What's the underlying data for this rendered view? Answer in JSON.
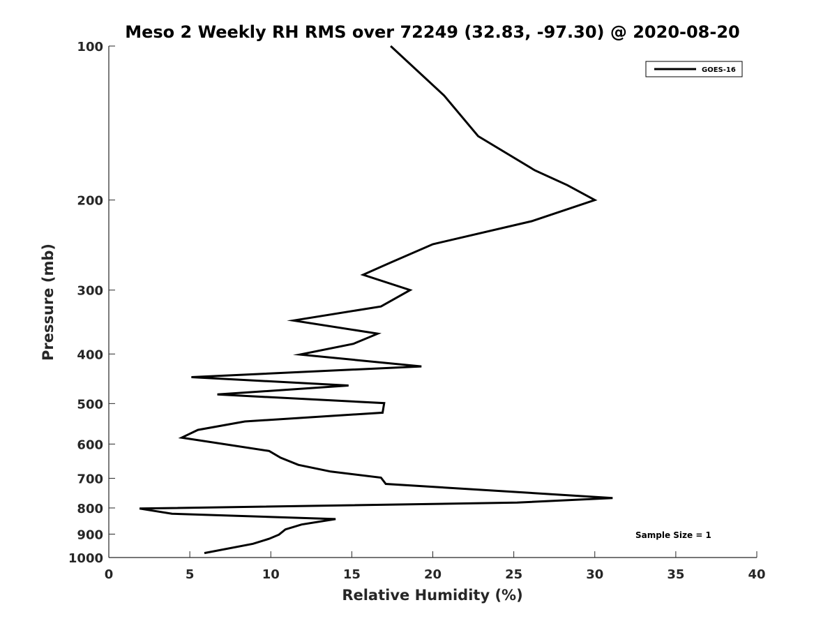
{
  "chart_data": {
    "type": "line",
    "title": "Meso 2 Weekly RH RMS over 72249 (32.83, -97.30) @ 2020-08-20",
    "xlabel": "Relative Humidity (%)",
    "ylabel": "Pressure (mb)",
    "xlim": [
      0,
      40
    ],
    "ylim": [
      100,
      1000
    ],
    "y_scale": "log",
    "y_reversed": true,
    "grid": false,
    "legend_position": "top-right",
    "x_ticks": [
      "0",
      "5",
      "10",
      "15",
      "20",
      "25",
      "30",
      "35",
      "40"
    ],
    "y_ticks": [
      "100",
      "200",
      "300",
      "400",
      "500",
      "600",
      "700",
      "800",
      "900",
      "1000"
    ],
    "annotation": "Sample Size = 1",
    "colors": {
      "line": "#000000",
      "axis": "#262626"
    },
    "series": [
      {
        "name": "GOES-16",
        "points": [
          [
            17.4,
            100
          ],
          [
            20.7,
            125
          ],
          [
            22.8,
            150
          ],
          [
            26.3,
            175
          ],
          [
            28.3,
            187
          ],
          [
            30.0,
            200
          ],
          [
            26.1,
            220
          ],
          [
            20.0,
            244
          ],
          [
            17.4,
            265
          ],
          [
            15.7,
            280
          ],
          [
            18.6,
            300
          ],
          [
            16.8,
            323
          ],
          [
            11.4,
            344
          ],
          [
            16.6,
            365
          ],
          [
            15.1,
            382
          ],
          [
            11.8,
            401
          ],
          [
            19.3,
            423
          ],
          [
            5.1,
            444
          ],
          [
            14.8,
            461
          ],
          [
            6.7,
            480
          ],
          [
            17.0,
            499
          ],
          [
            16.9,
            521
          ],
          [
            8.4,
            542
          ],
          [
            5.5,
            563
          ],
          [
            4.5,
            583
          ],
          [
            9.9,
            619
          ],
          [
            10.6,
            638
          ],
          [
            11.7,
            659
          ],
          [
            13.7,
            679
          ],
          [
            16.8,
            698
          ],
          [
            17.1,
            718
          ],
          [
            31.1,
            765
          ],
          [
            25.2,
            781
          ],
          [
            1.9,
            802
          ],
          [
            3.9,
            821
          ],
          [
            14.0,
            841
          ],
          [
            11.9,
            862
          ],
          [
            10.9,
            881
          ],
          [
            10.5,
            902
          ],
          [
            9.9,
            919
          ],
          [
            8.9,
            940
          ],
          [
            5.9,
            980
          ]
        ]
      }
    ]
  }
}
